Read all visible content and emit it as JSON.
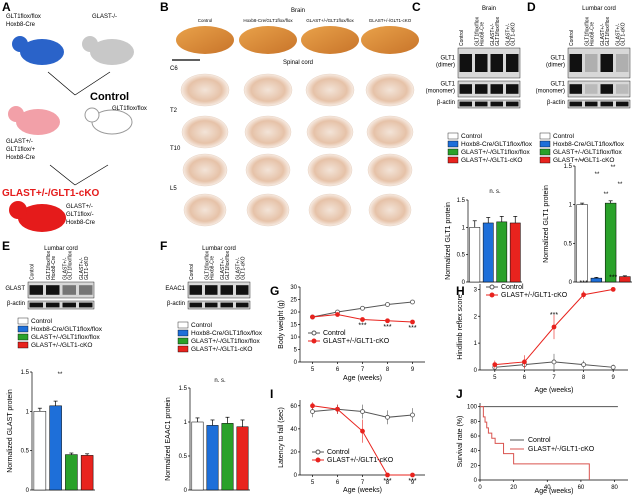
{
  "panel_labels": [
    "A",
    "B",
    "C",
    "D",
    "E",
    "F",
    "G",
    "H",
    "I",
    "J"
  ],
  "diagram": {
    "parent1": [
      "GLT1flox/flox",
      "Hoxb8-Cre"
    ],
    "parent2": [
      "GLAST-/-"
    ],
    "f1": [
      "GLAST+/-",
      "GLT1flox/+",
      "Hoxb8-Cre"
    ],
    "control_label": "Control",
    "control_geno": "GLT1flox/flox",
    "cko_label": "GLAST+/-/GLT1-cKO",
    "cko_geno": [
      "GLAST+/-",
      "GLT1flox/-",
      "Hoxb8-Cre"
    ]
  },
  "histology": {
    "brain_label": "Brain",
    "spinal_label": "Spinal cord",
    "columns": [
      "Control",
      "Hoxb8-Cre/GLT1flox/flox",
      "GLAST+/-/GLT1flox/flox",
      "GLAST+/-/GLT1-cKO"
    ],
    "levels": [
      "C6",
      "T2",
      "T10",
      "L5"
    ]
  },
  "blots": [
    {
      "title": "Brain",
      "lanes": [
        [
          "Control"
        ],
        [
          "GLT1flox/flox",
          "Hoxb8-Cre"
        ],
        [
          "GLAST+/-",
          "GLT1flox/flox"
        ],
        [
          "GLAST+/-",
          "GLT1-cKO"
        ]
      ],
      "bands": [
        [
          "GLT1",
          "(dimer)"
        ],
        [
          "GLT1",
          "(monomer)"
        ],
        [
          "β-actin"
        ]
      ]
    },
    {
      "title": "Lumbar cord",
      "lanes": [
        [
          "Control"
        ],
        [
          "GLT1flox/flox",
          "Hoxb8-Cre"
        ],
        [
          "GLAST+/-",
          "GLT1flox/flox"
        ],
        [
          "GLAST+/-",
          "GLT1-cKO"
        ]
      ],
      "bands": [
        [
          "GLT1",
          "(dimer)"
        ],
        [
          "GLT1",
          "(monomer)"
        ],
        [
          "β-actin"
        ]
      ]
    },
    {
      "title": "Lumbar cord",
      "lanes": [
        [
          "Control"
        ],
        [
          "GLT1flox/flox",
          "Hoxb8-Cre"
        ],
        [
          "GLAST+/-",
          "GLT1flox/flox"
        ],
        [
          "GLAST+/-",
          "GLT1-cKO"
        ]
      ],
      "bands": [
        [
          "GLAST"
        ],
        [
          "β-actin"
        ]
      ]
    },
    {
      "title": "Lumbar cord",
      "lanes": [
        [
          "Control"
        ],
        [
          "GLT1flox/flox",
          "Hoxb8-Cre"
        ],
        [
          "GLAST+/-",
          "GLT1flox/flox"
        ],
        [
          "GLAST+/-",
          "GLT1-cKO"
        ]
      ],
      "bands": [
        [
          "EAAC1"
        ],
        [
          "β-actin"
        ]
      ]
    }
  ],
  "chart_data": [
    {
      "type": "bar",
      "ylabel": "Normalized GLT1 protein",
      "categories": [
        "Control",
        "Hoxb8-Cre/GLT1flox/flox",
        "GLAST+/-/GLT1flox/flox",
        "GLAST+/-/GLT1-cKO"
      ],
      "colors": [
        "#ffffff",
        "#1e6fd9",
        "#2aa12a",
        "#e8231e"
      ],
      "values": [
        1.0,
        1.08,
        1.1,
        1.08
      ],
      "errors": [
        0.12,
        0.1,
        0.1,
        0.12
      ],
      "ylim": [
        0,
        1.5
      ],
      "yticks": [
        0,
        0.5,
        1,
        1.5
      ],
      "annotations": [
        "n. s."
      ]
    },
    {
      "type": "bar",
      "ylabel": "Normalized GLT1 protein",
      "categories": [
        "Control",
        "Hoxb8-Cre/GLT1flox/flox",
        "GLAST+/-/GLT1flox/flox",
        "GLAST+/-/GLT1-cKO"
      ],
      "colors": [
        "#ffffff",
        "#1e6fd9",
        "#2aa12a",
        "#e8231e"
      ],
      "values": [
        1.0,
        0.05,
        1.02,
        0.07
      ],
      "errors": [
        0.02,
        0.01,
        0.03,
        0.01
      ],
      "ylim": [
        0,
        1.5
      ],
      "yticks": [
        0,
        0.5,
        1,
        1.5
      ],
      "annotations": [
        "**",
        "**",
        "**",
        "**",
        "**"
      ]
    },
    {
      "type": "bar",
      "ylabel": "Normalized GLAST protein",
      "categories": [
        "Control",
        "Hoxb8-Cre/GLT1flox/flox",
        "GLAST+/-/GLT1flox/flox",
        "GLAST+/-/GLT1-cKO"
      ],
      "colors": [
        "#ffffff",
        "#1e6fd9",
        "#2aa12a",
        "#e8231e"
      ],
      "values": [
        1.0,
        1.07,
        0.45,
        0.44
      ],
      "errors": [
        0.04,
        0.06,
        0.02,
        0.02
      ],
      "ylim": [
        0,
        1.5
      ],
      "yticks": [
        0,
        0.5,
        1,
        1.5
      ],
      "annotations": [
        "**"
      ]
    },
    {
      "type": "bar",
      "ylabel": "Normalized EAAC1 protein",
      "categories": [
        "Control",
        "Hoxb8-Cre/GLT1flox/flox",
        "GLAST+/-/GLT1flox/flox",
        "GLAST+/-/GLT1-cKO"
      ],
      "colors": [
        "#ffffff",
        "#1e6fd9",
        "#2aa12a",
        "#e8231e"
      ],
      "values": [
        1.0,
        0.95,
        0.98,
        0.93
      ],
      "errors": [
        0.06,
        0.08,
        0.09,
        0.1
      ],
      "ylim": [
        0,
        1.5
      ],
      "yticks": [
        0,
        0.5,
        1,
        1.5
      ],
      "annotations": [
        "n. s."
      ]
    },
    {
      "type": "line",
      "xlabel": "Age (weeks)",
      "ylabel": "Body weight (g)",
      "x": [
        5,
        6,
        7,
        8,
        9
      ],
      "xlim": [
        4.5,
        9.5
      ],
      "xticks": [
        5,
        6,
        7,
        8,
        9
      ],
      "ylim": [
        0,
        30
      ],
      "yticks": [
        0,
        5,
        10,
        15,
        20,
        25,
        30
      ],
      "series": [
        {
          "name": "Control",
          "color": "#555555",
          "values": [
            18,
            20,
            21.5,
            23,
            24
          ],
          "errors": [
            0.8,
            0.8,
            0.8,
            0.8,
            0.8
          ]
        },
        {
          "name": "GLAST+/-/GLT1-cKO",
          "color": "#e8231e",
          "values": [
            18,
            19,
            17,
            16.5,
            16
          ],
          "errors": [
            0.8,
            0.8,
            0.8,
            0.8,
            0.8
          ]
        }
      ],
      "annotations": [
        "***",
        "***",
        "***"
      ]
    },
    {
      "type": "line",
      "xlabel": "Age (weeks)",
      "ylabel": "Hindlimb reflex score",
      "x": [
        5,
        6,
        7,
        8,
        9
      ],
      "xlim": [
        4.5,
        9.5
      ],
      "xticks": [
        5,
        6,
        7,
        8,
        9
      ],
      "ylim": [
        0,
        3.2
      ],
      "yticks": [
        0,
        1,
        2,
        3
      ],
      "series": [
        {
          "name": "Control",
          "color": "#555555",
          "values": [
            0.1,
            0.2,
            0.3,
            0.2,
            0.1
          ],
          "errors": [
            0.1,
            0.15,
            0.3,
            0.15,
            0.1
          ]
        },
        {
          "name": "GLAST+/-/GLT1-cKO",
          "color": "#e8231e",
          "values": [
            0.2,
            0.3,
            1.6,
            2.8,
            3.0
          ],
          "errors": [
            0.15,
            0.25,
            0.45,
            0.15,
            0.05
          ]
        }
      ],
      "annotations": [
        "***",
        "***",
        "***"
      ]
    },
    {
      "type": "line",
      "xlabel": "Age (weeks)",
      "ylabel": "Latency to fall (sec)",
      "x": [
        5,
        6,
        7,
        8,
        9
      ],
      "xlim": [
        4.5,
        9.5
      ],
      "xticks": [
        5,
        6,
        7,
        8,
        9
      ],
      "ylim": [
        0,
        65
      ],
      "yticks": [
        0,
        20,
        40,
        60
      ],
      "series": [
        {
          "name": "Control",
          "color": "#555555",
          "values": [
            55,
            57,
            55,
            50,
            52
          ],
          "errors": [
            5,
            4,
            6,
            6,
            6
          ]
        },
        {
          "name": "GLAST+/-/GLT1-cKO",
          "color": "#e8231e",
          "values": [
            60,
            57,
            38,
            0,
            0
          ],
          "errors": [
            3,
            4,
            10,
            0,
            0
          ]
        }
      ],
      "annotations": [
        "***",
        "***"
      ]
    },
    {
      "type": "step",
      "xlabel": "Age (weeks)",
      "ylabel": "Survival rate (%)",
      "xlim": [
        0,
        88
      ],
      "xticks": [
        0,
        20,
        40,
        60,
        80
      ],
      "ylim": [
        0,
        105
      ],
      "yticks": [
        0,
        20,
        40,
        60,
        80,
        100
      ],
      "series": [
        {
          "name": "Control",
          "color": "#555555",
          "x": [
            0,
            82
          ],
          "values": [
            100,
            100
          ]
        },
        {
          "name": "GLAST+/-/GLT1-cKO",
          "color": "#d9534f",
          "x": [
            0,
            2,
            2,
            3,
            3,
            4,
            4,
            5,
            5,
            7,
            7,
            9,
            9,
            14,
            14,
            20,
            20,
            65,
            65
          ],
          "values": [
            100,
            100,
            86,
            86,
            79,
            79,
            71,
            71,
            64,
            64,
            57,
            57,
            50,
            50,
            36,
            36,
            22,
            22,
            0
          ]
        }
      ]
    }
  ]
}
